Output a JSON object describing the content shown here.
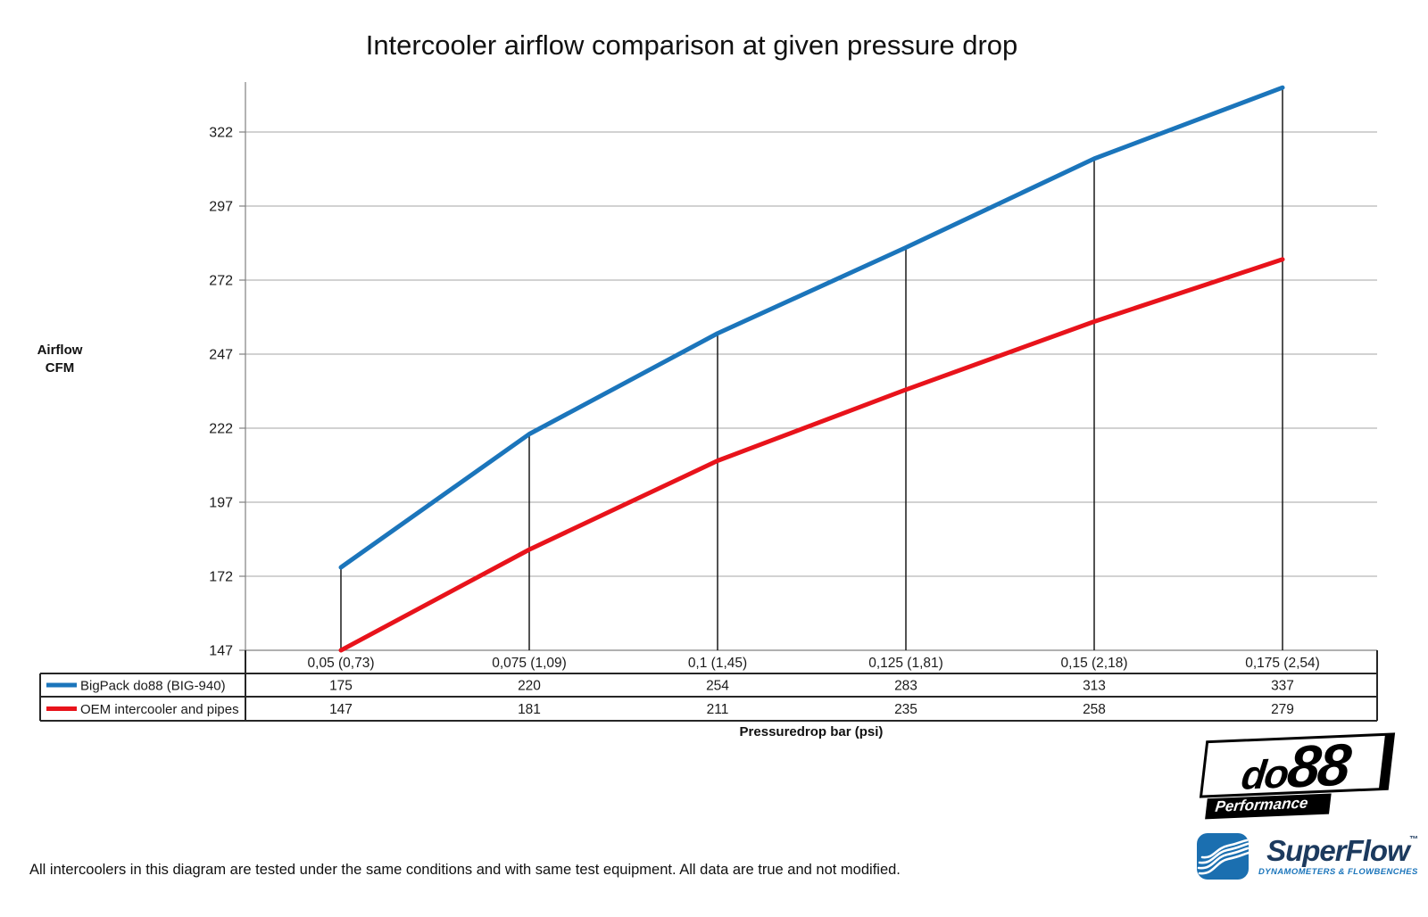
{
  "chart_data": {
    "type": "line",
    "title": "Intercooler airflow comparison at given pressure drop",
    "xlabel": "Pressuredrop bar (psi)",
    "ylabel": "Airflow CFM",
    "ylabel_lines": [
      "Airflow",
      "CFM"
    ],
    "categories": [
      "0,05 (0,73)",
      "0,075 (1,09)",
      "0,1 (1,45)",
      "0,125 (1,81)",
      "0,15 (2,18)",
      "0,175 (2,54)"
    ],
    "series": [
      {
        "name": "BigPack do88 (BIG-940)",
        "color": "#1b75bb",
        "values": [
          175,
          220,
          254,
          283,
          313,
          337
        ]
      },
      {
        "name": "OEM intercooler and pipes",
        "color": "#e8131b",
        "values": [
          147,
          181,
          211,
          235,
          258,
          279
        ]
      }
    ],
    "yticks": [
      147,
      172,
      197,
      222,
      247,
      272,
      297,
      322
    ],
    "ylim": [
      147,
      338
    ],
    "grid": "horizontal",
    "legend_position": "data-table-left",
    "drop_lines": true
  },
  "footer": {
    "disclaimer": "All intercoolers in this diagram are tested under the same conditions and with same test equipment. All data are true and not modified."
  },
  "logos": {
    "do88": {
      "part1": "do",
      "part2": "88",
      "tagline": "Performance",
      "color": "#000000"
    },
    "superflow": {
      "name": "SuperFlow",
      "trademark": "™",
      "tagline": "DYNAMOMETERS & FLOWBENCHES",
      "icon_color": "#1b6fb0",
      "text_color": "#1c3a5e",
      "tagline_color": "#1b75bb"
    }
  }
}
